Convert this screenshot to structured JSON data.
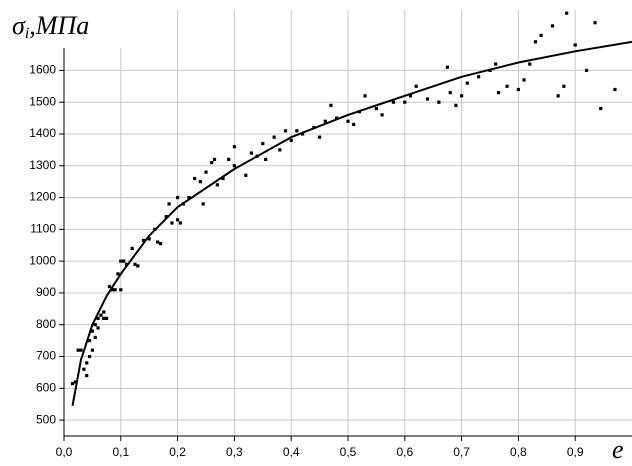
{
  "chart_data": {
    "type": "scatter",
    "ylabel": {
      "symbol": "σ",
      "subscript": "i",
      "unit": ",МПа"
    },
    "xlabel": "e",
    "xlim": [
      0,
      1.0
    ],
    "ylim": [
      450,
      1790
    ],
    "xticks": [
      {
        "value": 0,
        "label": "0,0"
      },
      {
        "value": 0.1,
        "label": "0,1"
      },
      {
        "value": 0.2,
        "label": "0,2"
      },
      {
        "value": 0.3,
        "label": "0,3"
      },
      {
        "value": 0.4,
        "label": "0,4"
      },
      {
        "value": 0.5,
        "label": "0,5"
      },
      {
        "value": 0.6,
        "label": "0,6"
      },
      {
        "value": 0.7,
        "label": "0,7"
      },
      {
        "value": 0.8,
        "label": "0,8"
      },
      {
        "value": 0.9,
        "label": "0,9"
      }
    ],
    "yticks": [
      500,
      600,
      700,
      800,
      900,
      1000,
      1100,
      1200,
      1300,
      1400,
      1500,
      1600
    ],
    "grid": true,
    "series": [
      {
        "type": "scatter",
        "color": "#000000",
        "x": [
          0.015,
          0.02,
          0.025,
          0.03,
          0.035,
          0.04,
          0.04,
          0.045,
          0.045,
          0.05,
          0.05,
          0.055,
          0.055,
          0.06,
          0.06,
          0.065,
          0.07,
          0.07,
          0.075,
          0.08,
          0.085,
          0.09,
          0.095,
          0.1,
          0.1,
          0.105,
          0.11,
          0.12,
          0.125,
          0.13,
          0.14,
          0.15,
          0.16,
          0.165,
          0.17,
          0.18,
          0.185,
          0.19,
          0.2,
          0.2,
          0.205,
          0.21,
          0.22,
          0.23,
          0.24,
          0.245,
          0.25,
          0.26,
          0.265,
          0.27,
          0.28,
          0.29,
          0.3,
          0.3,
          0.32,
          0.33,
          0.34,
          0.35,
          0.355,
          0.37,
          0.38,
          0.39,
          0.4,
          0.41,
          0.42,
          0.44,
          0.45,
          0.46,
          0.47,
          0.48,
          0.5,
          0.51,
          0.52,
          0.53,
          0.55,
          0.56,
          0.58,
          0.6,
          0.61,
          0.62,
          0.64,
          0.66,
          0.675,
          0.68,
          0.69,
          0.7,
          0.71,
          0.73,
          0.75,
          0.76,
          0.765,
          0.78,
          0.8,
          0.81,
          0.82,
          0.83,
          0.84,
          0.86,
          0.87,
          0.88,
          0.885,
          0.9,
          0.92,
          0.935,
          0.945,
          0.97
        ],
        "values": [
          615,
          620,
          720,
          720,
          660,
          680,
          640,
          700,
          750,
          720,
          780,
          800,
          760,
          820,
          790,
          830,
          820,
          840,
          820,
          920,
          910,
          910,
          960,
          910,
          1000,
          1000,
          990,
          1040,
          990,
          985,
          1065,
          1070,
          1100,
          1060,
          1055,
          1140,
          1180,
          1120,
          1200,
          1130,
          1120,
          1180,
          1200,
          1260,
          1250,
          1180,
          1280,
          1310,
          1320,
          1240,
          1260,
          1320,
          1300,
          1360,
          1270,
          1340,
          1330,
          1370,
          1320,
          1390,
          1350,
          1410,
          1380,
          1410,
          1400,
          1420,
          1390,
          1440,
          1490,
          1450,
          1440,
          1430,
          1470,
          1520,
          1480,
          1460,
          1500,
          1500,
          1520,
          1550,
          1510,
          1500,
          1610,
          1530,
          1490,
          1520,
          1560,
          1580,
          1600,
          1620,
          1530,
          1550,
          1540,
          1570,
          1620,
          1690,
          1710,
          1740,
          1520,
          1550,
          1780,
          1680,
          1600,
          1750,
          1480,
          1540
        ]
      },
      {
        "type": "line",
        "color": "#000000",
        "x": [
          0.015,
          0.03,
          0.05,
          0.075,
          0.1,
          0.15,
          0.2,
          0.3,
          0.4,
          0.5,
          0.6,
          0.7,
          0.8,
          0.9,
          1.0
        ],
        "values": [
          545,
          690,
          800,
          890,
          960,
          1080,
          1170,
          1290,
          1390,
          1460,
          1520,
          1580,
          1625,
          1660,
          1690
        ]
      }
    ]
  }
}
